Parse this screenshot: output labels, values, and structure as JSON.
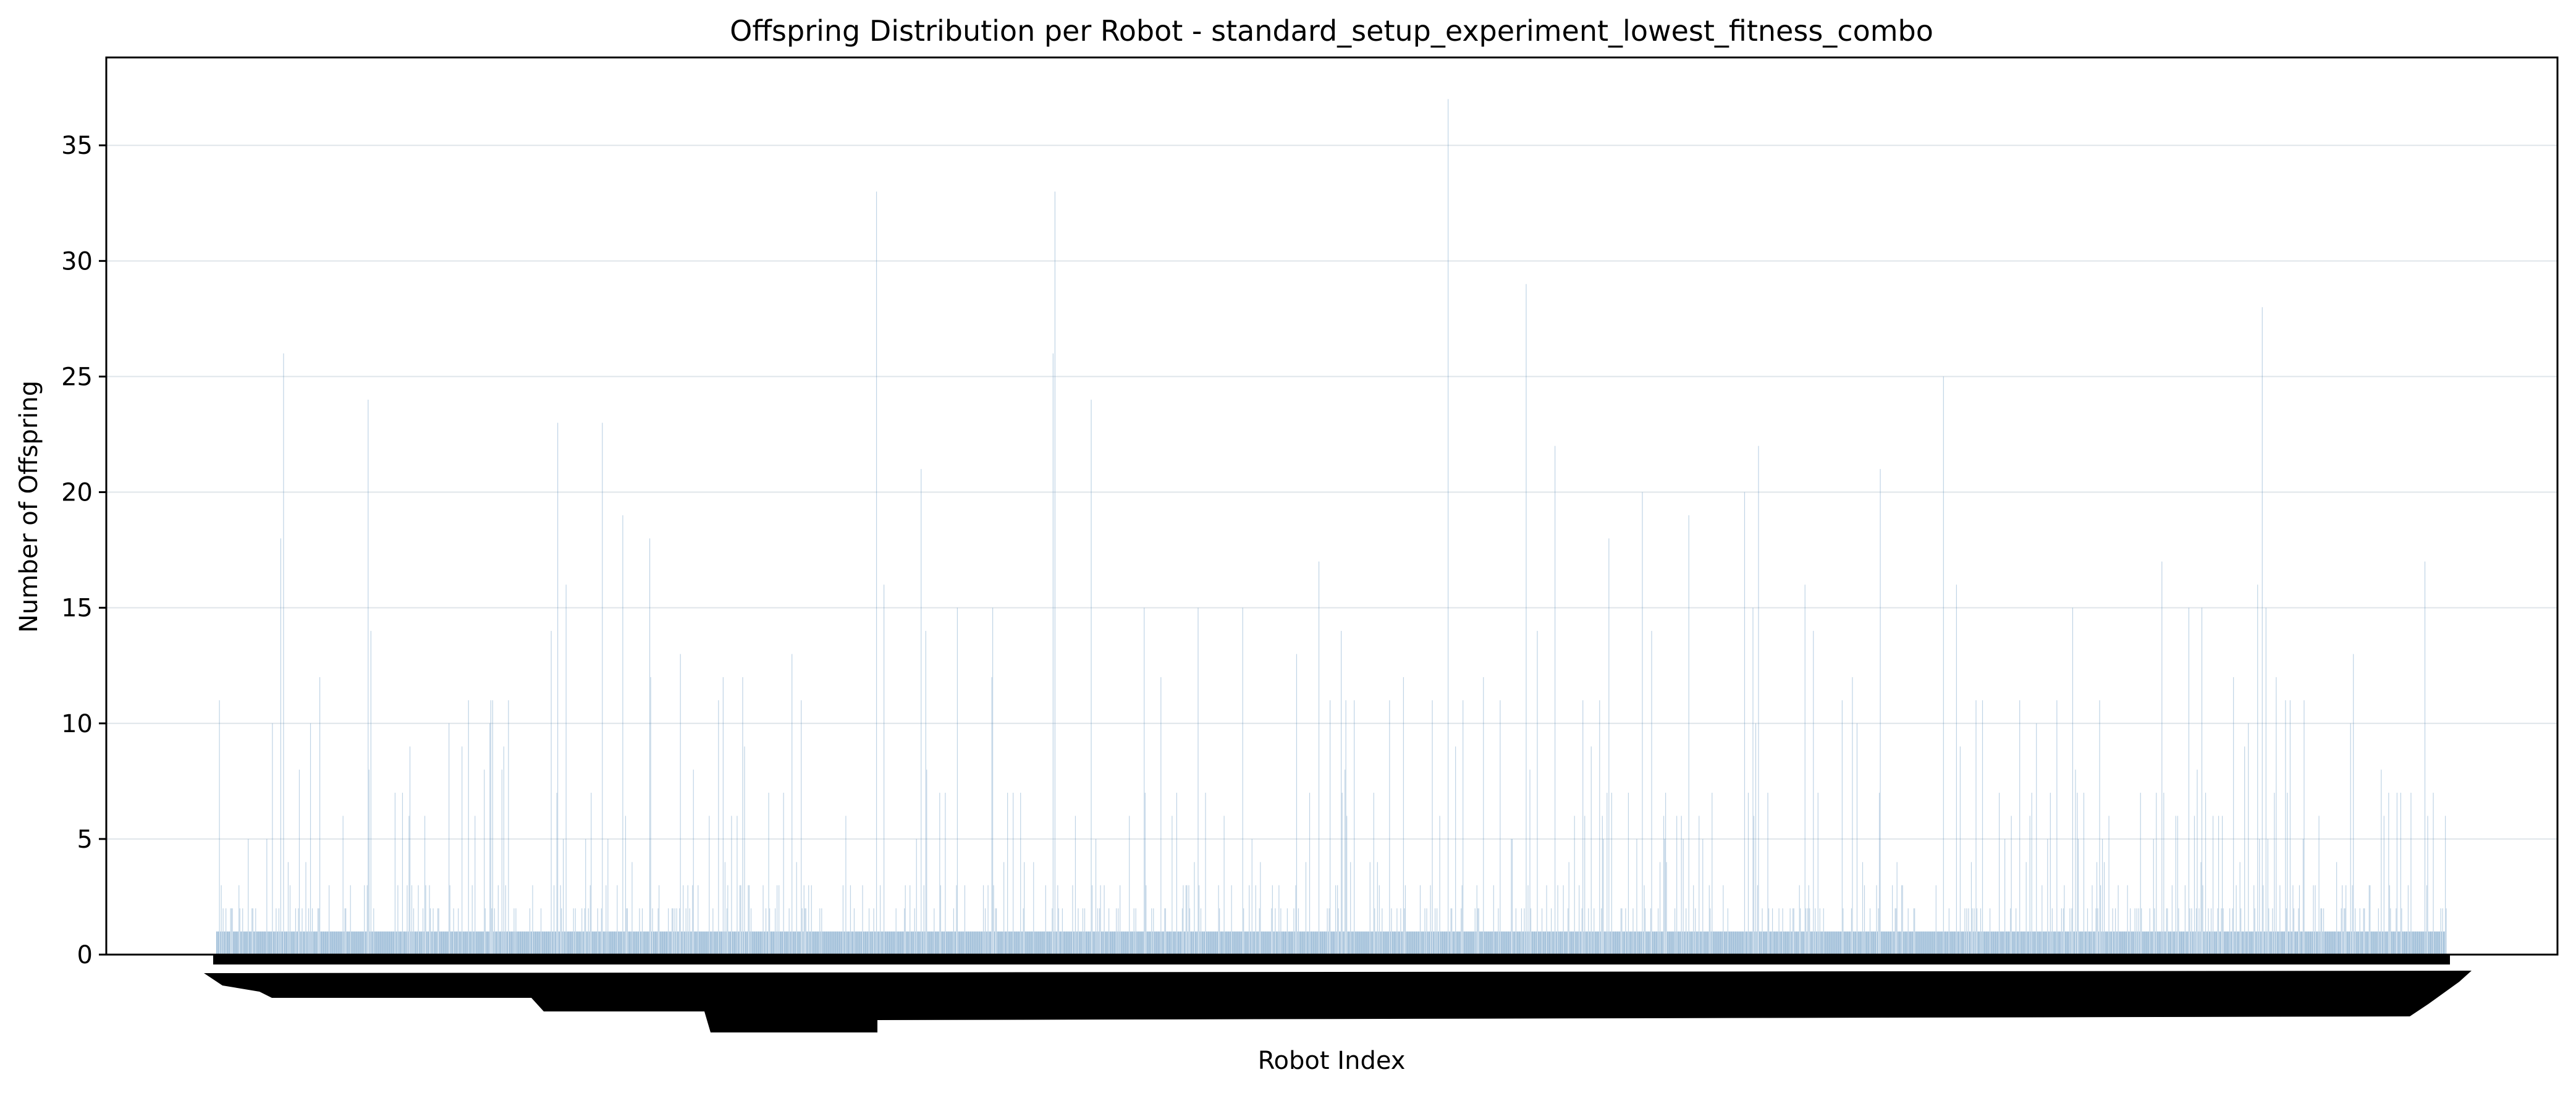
{
  "chart_data": {
    "type": "bar",
    "title": "Offspring Distribution per Robot - standard_setup_experiment_lowest_fitness_combo",
    "xlabel": "Robot Index",
    "ylabel": "Number of Offspring",
    "ylim": [
      0,
      38.8
    ],
    "yticks": [
      "0",
      "5",
      "10",
      "15",
      "20",
      "25",
      "30",
      "35"
    ],
    "grid": "horizontal",
    "bar_color": "#4682b4",
    "x_count": 2400,
    "x_ticks_note": "every robot index is printed as a rotated tick label; the labels overlap into an illegible band",
    "peaks": [
      {
        "x": 62,
        "y": 10
      },
      {
        "x": 72,
        "y": 18
      },
      {
        "x": 75,
        "y": 26
      },
      {
        "x": 105,
        "y": 10
      },
      {
        "x": 170,
        "y": 24
      },
      {
        "x": 173,
        "y": 14
      },
      {
        "x": 260,
        "y": 10
      },
      {
        "x": 275,
        "y": 9
      },
      {
        "x": 300,
        "y": 8
      },
      {
        "x": 320,
        "y": 8
      },
      {
        "x": 375,
        "y": 14
      },
      {
        "x": 382,
        "y": 23
      },
      {
        "x": 392,
        "y": 16
      },
      {
        "x": 432,
        "y": 23
      },
      {
        "x": 455,
        "y": 19
      },
      {
        "x": 485,
        "y": 18
      },
      {
        "x": 520,
        "y": 13
      },
      {
        "x": 590,
        "y": 12
      },
      {
        "x": 645,
        "y": 13
      },
      {
        "x": 655,
        "y": 11
      },
      {
        "x": 740,
        "y": 33
      },
      {
        "x": 748,
        "y": 16
      },
      {
        "x": 790,
        "y": 21
      },
      {
        "x": 795,
        "y": 14
      },
      {
        "x": 830,
        "y": 15
      },
      {
        "x": 870,
        "y": 15
      },
      {
        "x": 937,
        "y": 26
      },
      {
        "x": 940,
        "y": 33
      },
      {
        "x": 980,
        "y": 24
      },
      {
        "x": 1040,
        "y": 15
      },
      {
        "x": 1058,
        "y": 12
      },
      {
        "x": 1100,
        "y": 15
      },
      {
        "x": 1150,
        "y": 15
      },
      {
        "x": 1210,
        "y": 13
      },
      {
        "x": 1235,
        "y": 17
      },
      {
        "x": 1260,
        "y": 14
      },
      {
        "x": 1275,
        "y": 11
      },
      {
        "x": 1330,
        "y": 12
      },
      {
        "x": 1330,
        "y": 12
      },
      {
        "x": 1380,
        "y": 37
      },
      {
        "x": 1420,
        "y": 12
      },
      {
        "x": 1468,
        "y": 29
      },
      {
        "x": 1480,
        "y": 14
      },
      {
        "x": 1500,
        "y": 22
      },
      {
        "x": 1550,
        "y": 11
      },
      {
        "x": 1560,
        "y": 18
      },
      {
        "x": 1598,
        "y": 20
      },
      {
        "x": 1608,
        "y": 14
      },
      {
        "x": 1650,
        "y": 19
      },
      {
        "x": 1712,
        "y": 20
      },
      {
        "x": 1722,
        "y": 15
      },
      {
        "x": 1728,
        "y": 22
      },
      {
        "x": 1780,
        "y": 16
      },
      {
        "x": 1790,
        "y": 14
      },
      {
        "x": 1822,
        "y": 11
      },
      {
        "x": 1865,
        "y": 21
      },
      {
        "x": 1935,
        "y": 25
      },
      {
        "x": 1950,
        "y": 16
      },
      {
        "x": 2080,
        "y": 15
      },
      {
        "x": 2110,
        "y": 11
      },
      {
        "x": 2180,
        "y": 17
      },
      {
        "x": 2210,
        "y": 15
      },
      {
        "x": 2225,
        "y": 15
      },
      {
        "x": 2260,
        "y": 12
      },
      {
        "x": 2287,
        "y": 16
      },
      {
        "x": 2293,
        "y": 28
      },
      {
        "x": 2297,
        "y": 15
      },
      {
        "x": 2340,
        "y": 10
      },
      {
        "x": 2395,
        "y": 13
      },
      {
        "x": 2475,
        "y": 17
      },
      {
        "x": 2392,
        "y": 10
      }
    ]
  }
}
